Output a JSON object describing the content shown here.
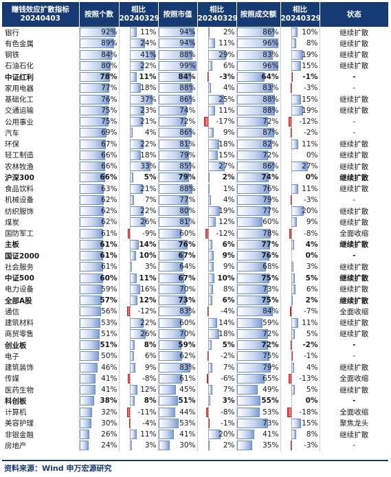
{
  "headers": {
    "title_line1": "赚钱效应扩散指标",
    "title_line2": "20240403",
    "count": "按照个数",
    "compare1_line1": "相比",
    "compare1_line2": "20240329",
    "mktcap": "按照市值",
    "compare2_line1": "相比",
    "compare2_line2": "20240329",
    "volume": "按照成交额",
    "compare3_line1": "相比",
    "compare3_line2": "20240329",
    "status": "状态"
  },
  "colors": {
    "header_bg": "#163a74",
    "positive_bar": "#7d9fd6",
    "negative_bar": "#e82a2a"
  },
  "rows": [
    {
      "name": "银行",
      "count": 92,
      "d1": 11,
      "mktcap": 94,
      "d2": 2,
      "volume": 86,
      "d3": 10,
      "status": "继续扩散",
      "bold": false
    },
    {
      "name": "有色金属",
      "count": 89,
      "d1": 24,
      "mktcap": 94,
      "d2": 11,
      "volume": 96,
      "d3": 8,
      "status": "继续扩散",
      "bold": false
    },
    {
      "name": "钢铁",
      "count": 84,
      "d1": 41,
      "mktcap": 88,
      "d2": 29,
      "volume": 83,
      "d3": 19,
      "status": "继续扩散",
      "bold": false
    },
    {
      "name": "石油石化",
      "count": 80,
      "d1": 22,
      "mktcap": 99,
      "d2": 6,
      "volume": 96,
      "d3": 15,
      "status": "继续扩散",
      "bold": false
    },
    {
      "name": "中证红利",
      "count": 78,
      "d1": 11,
      "mktcap": 84,
      "d2": -3,
      "volume": 64,
      "d3": -1,
      "status": "-",
      "bold": true
    },
    {
      "name": "家用电器",
      "count": 77,
      "d1": 18,
      "mktcap": 88,
      "d2": 4,
      "volume": 83,
      "d3": -3,
      "status": "-",
      "bold": false
    },
    {
      "name": "基础化工",
      "count": 76,
      "d1": 37,
      "mktcap": 86,
      "d2": 25,
      "volume": 88,
      "d3": 15,
      "status": "继续扩散",
      "bold": false
    },
    {
      "name": "交通运输",
      "count": 75,
      "d1": 23,
      "mktcap": 74,
      "d2": 11,
      "volume": 88,
      "d3": 19,
      "status": "继续扩散",
      "bold": false
    },
    {
      "name": "公用事业",
      "count": 75,
      "d1": 21,
      "mktcap": 72,
      "d2": -17,
      "volume": 72,
      "d3": -12,
      "status": "-",
      "bold": false
    },
    {
      "name": "汽车",
      "count": 69,
      "d1": 4,
      "mktcap": 86,
      "d2": 9,
      "volume": 87,
      "d3": -2,
      "status": "-",
      "bold": false
    },
    {
      "name": "环保",
      "count": 67,
      "d1": 22,
      "mktcap": 81,
      "d2": 18,
      "volume": 82,
      "d3": 11,
      "status": "继续扩散",
      "bold": false
    },
    {
      "name": "轻工制造",
      "count": 66,
      "d1": 18,
      "mktcap": 79,
      "d2": 15,
      "volume": 72,
      "d3": 0,
      "status": "继续扩散",
      "bold": false
    },
    {
      "name": "农林牧渔",
      "count": 66,
      "d1": 33,
      "mktcap": 85,
      "d2": 27,
      "volume": 86,
      "d3": 27,
      "status": "继续扩散",
      "bold": false
    },
    {
      "name": "沪深300",
      "count": 66,
      "d1": 5,
      "mktcap": 79,
      "d2": 2,
      "volume": 74,
      "d3": 0,
      "status": "继续扩散",
      "bold": true
    },
    {
      "name": "食品饮料",
      "count": 63,
      "d1": 21,
      "mktcap": 88,
      "d2": 1,
      "volume": 76,
      "d3": 11,
      "status": "继续扩散",
      "bold": false
    },
    {
      "name": "机械设备",
      "count": 62,
      "d1": 7,
      "mktcap": 77,
      "d2": 4,
      "volume": 79,
      "d3": -3,
      "status": "-",
      "bold": false
    },
    {
      "name": "纺织服饰",
      "count": 62,
      "d1": 22,
      "mktcap": 80,
      "d2": 19,
      "volume": 77,
      "d3": 20,
      "status": "继续扩散",
      "bold": false
    },
    {
      "name": "煤炭",
      "count": 62,
      "d1": 26,
      "mktcap": 81,
      "d2": 12,
      "volume": 60,
      "d3": 9,
      "status": "继续扩散",
      "bold": false
    },
    {
      "name": "国防军工",
      "count": 61,
      "d1": -9,
      "mktcap": 60,
      "d2": -12,
      "volume": 78,
      "d3": -8,
      "status": "全面收缩",
      "bold": false
    },
    {
      "name": "主板",
      "count": 61,
      "d1": 14,
      "mktcap": 76,
      "d2": 6,
      "volume": 77,
      "d3": 4,
      "status": "继续扩散",
      "bold": true
    },
    {
      "name": "国证2000",
      "count": 61,
      "d1": 10,
      "mktcap": 67,
      "d2": 9,
      "volume": 76,
      "d3": 0,
      "status": "-",
      "bold": true
    },
    {
      "name": "社会服务",
      "count": 61,
      "d1": 3,
      "mktcap": 64,
      "d2": 9,
      "volume": 68,
      "d3": 3,
      "status": "继续扩散",
      "bold": false
    },
    {
      "name": "中证500",
      "count": 60,
      "d1": 11,
      "mktcap": 67,
      "d2": 10,
      "volume": 75,
      "d3": 5,
      "status": "继续扩散",
      "bold": true
    },
    {
      "name": "电力设备",
      "count": 59,
      "d1": 16,
      "mktcap": 70,
      "d2": 8,
      "volume": 73,
      "d3": 6,
      "status": "继续扩散",
      "bold": false
    },
    {
      "name": "全部A股",
      "count": 57,
      "d1": 12,
      "mktcap": 73,
      "d2": 6,
      "volume": 75,
      "d3": 2,
      "status": "继续扩散",
      "bold": true
    },
    {
      "name": "通信",
      "count": 56,
      "d1": -12,
      "mktcap": 83,
      "d2": -4,
      "volume": 84,
      "d3": -7,
      "status": "全面收缩",
      "bold": false
    },
    {
      "name": "建筑材料",
      "count": 53,
      "d1": 22,
      "mktcap": 60,
      "d2": 14,
      "volume": 59,
      "d3": 11,
      "status": "继续扩散",
      "bold": false
    },
    {
      "name": "商贸零售",
      "count": 51,
      "d1": 26,
      "mktcap": 70,
      "d2": 18,
      "volume": 72,
      "d3": 5,
      "status": "继续扩散",
      "bold": false
    },
    {
      "name": "创业板",
      "count": 51,
      "d1": 8,
      "mktcap": 59,
      "d2": 5,
      "volume": 72,
      "d3": -2,
      "status": "-",
      "bold": true
    },
    {
      "name": "电子",
      "count": 50,
      "d1": 6,
      "mktcap": 62,
      "d2": -2,
      "volume": 75,
      "d3": -1,
      "status": "-",
      "bold": false
    },
    {
      "name": "建筑装饰",
      "count": 46,
      "d1": 9,
      "mktcap": 83,
      "d2": 7,
      "volume": 79,
      "d3": 4,
      "status": "继续扩散",
      "bold": false
    },
    {
      "name": "传媒",
      "count": 41,
      "d1": -8,
      "mktcap": 61,
      "d2": -6,
      "volume": 65,
      "d3": -13,
      "status": "全面收缩",
      "bold": false
    },
    {
      "name": "医药生物",
      "count": 41,
      "d1": 12,
      "mktcap": 45,
      "d2": 7,
      "volume": 49,
      "d3": 5,
      "status": "继续扩散",
      "bold": false
    },
    {
      "name": "科创板",
      "count": 38,
      "d1": 8,
      "mktcap": 51,
      "d2": 3,
      "volume": 55,
      "d3": 0,
      "status": "-",
      "bold": true
    },
    {
      "name": "计算机",
      "count": 32,
      "d1": -11,
      "mktcap": 44,
      "d2": -8,
      "volume": 53,
      "d3": -18,
      "status": "全面收缩",
      "bold": false
    },
    {
      "name": "美容护理",
      "count": 30,
      "d1": -4,
      "mktcap": 53,
      "d2": -1,
      "volume": 73,
      "d3": 15,
      "status": "聚焦龙头",
      "bold": false
    },
    {
      "name": "非银金融",
      "count": 26,
      "d1": 11,
      "mktcap": 41,
      "d2": 20,
      "volume": 41,
      "d3": 8,
      "status": "继续扩散",
      "bold": false
    },
    {
      "name": "房地产",
      "count": 24,
      "d1": 3,
      "mktcap": 30,
      "d2": 2,
      "volume": 35,
      "d3": -3,
      "status": "-",
      "bold": false
    }
  ],
  "footer": "资料来源：Wind 申万宏源研究"
}
